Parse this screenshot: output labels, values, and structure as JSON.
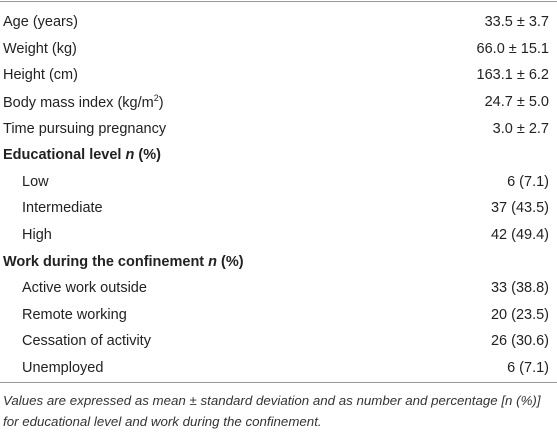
{
  "table": {
    "rows": [
      {
        "label": "Age (years)",
        "value": "33.5 ± 3.7"
      },
      {
        "label": "Weight (kg)",
        "value": "66.0 ± 15.1"
      },
      {
        "label": "Height (cm)",
        "value": "163.1 ± 6.2"
      },
      {
        "label": "Body mass index (kg/m",
        "label_sup": "2",
        "label_after": ")",
        "value": "24.7 ± 5.0"
      },
      {
        "label": "Time pursuing pregnancy",
        "value": "3.0 ± 2.7"
      }
    ],
    "sections": [
      {
        "title": "Educational level",
        "title_var": "n",
        "title_unit": "(%)",
        "rows": [
          {
            "label": "Low",
            "value": "6 (7.1)"
          },
          {
            "label": "Intermediate",
            "value": "37 (43.5)"
          },
          {
            "label": "High",
            "value": "42 (49.4)"
          }
        ]
      },
      {
        "title": "Work during the confinement",
        "title_var": "n",
        "title_unit": "(%)",
        "rows": [
          {
            "label": "Active work outside",
            "value": "33 (38.8)"
          },
          {
            "label": "Remote working",
            "value": "20 (23.5)"
          },
          {
            "label": "Cessation of activity",
            "value": "26 (30.6)"
          },
          {
            "label": "Unemployed",
            "value": "6 (7.1)"
          }
        ]
      }
    ]
  },
  "footnote": "Values are expressed as mean ± standard deviation and as number and percentage [n (%)] for educational level and work during the confinement."
}
